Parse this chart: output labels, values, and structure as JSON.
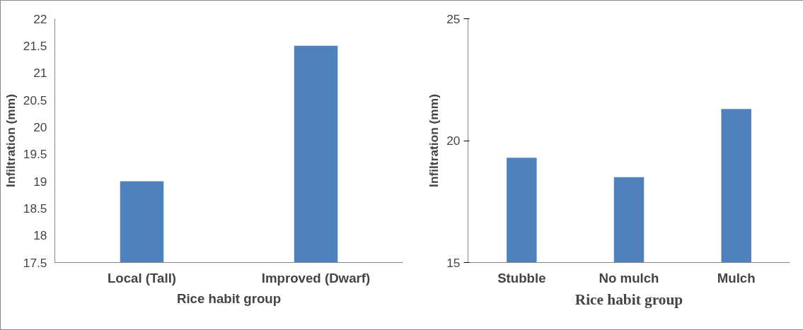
{
  "chart_data": [
    {
      "type": "bar",
      "categories": [
        "Local (Tall)",
        "Improved (Dwarf)"
      ],
      "values": [
        19,
        21.5
      ],
      "color": "#4f81bd",
      "xlabel": "Rice habit group",
      "ylabel": "Infiltration (mm)",
      "ylim": [
        17.5,
        22
      ],
      "yticks": [
        17.5,
        18,
        18.5,
        19,
        19.5,
        20,
        20.5,
        21,
        21.5,
        22
      ],
      "grid": false
    },
    {
      "type": "bar",
      "categories": [
        "Stubble",
        "No mulch",
        "Mulch"
      ],
      "values": [
        19.3,
        18.5,
        21.3
      ],
      "color": "#4f81bd",
      "xlabel": "Rice habit group",
      "ylabel": "Infiltration (mm)",
      "ylim": [
        15,
        25
      ],
      "yticks": [
        15,
        20,
        25
      ],
      "grid": false
    }
  ]
}
